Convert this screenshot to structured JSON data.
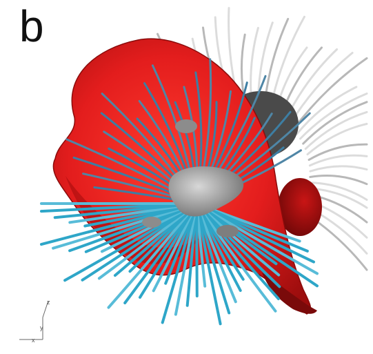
{
  "panel": {
    "label": "b"
  },
  "axes_triad": {
    "x_label": "x",
    "y_label": "y",
    "z_label": "z"
  },
  "colors": {
    "surface": "#e31d1d",
    "surface_dark": "#a80f0f",
    "streamline_blue": "#2ea6c8",
    "streamline_white": "#d8d8d8",
    "core_gray": "#9a9a9a",
    "background": "#ffffff"
  }
}
